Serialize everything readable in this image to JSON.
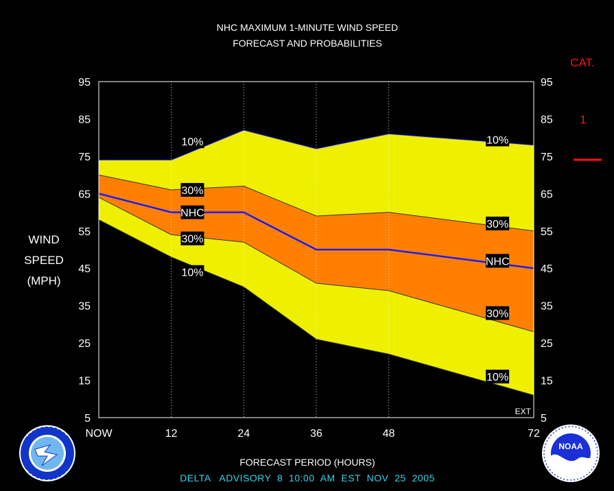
{
  "chart_data": {
    "type": "area",
    "title_line1": "NHC MAXIMUM 1-MINUTE WIND SPEED",
    "title_line2": "FORECAST AND PROBABILITIES",
    "ylabel_lines": [
      "WIND",
      "SPEED",
      "(MPH)"
    ],
    "xlabel": "FORECAST PERIOD (HOURS)",
    "ylim": [
      5,
      95
    ],
    "xlim": [
      0,
      72
    ],
    "yticks": [
      5,
      15,
      25,
      35,
      45,
      55,
      65,
      75,
      85,
      95
    ],
    "xticks": [
      {
        "x": 0,
        "label": "NOW"
      },
      {
        "x": 12,
        "label": "12"
      },
      {
        "x": 24,
        "label": "24"
      },
      {
        "x": 36,
        "label": "36"
      },
      {
        "x": 48,
        "label": "48"
      },
      {
        "x": 72,
        "label": "72"
      }
    ],
    "x": [
      0,
      12,
      24,
      36,
      48,
      72
    ],
    "series": [
      {
        "key": "upper10",
        "values": [
          74,
          74,
          82,
          77,
          81,
          78
        ]
      },
      {
        "key": "upper30",
        "values": [
          70,
          66,
          67,
          59,
          60,
          55
        ]
      },
      {
        "key": "nhc",
        "values": [
          65,
          60,
          60,
          50,
          50,
          45
        ]
      },
      {
        "key": "lower30",
        "values": [
          64,
          54,
          52,
          41,
          39,
          28
        ]
      },
      {
        "key": "lower10",
        "values": [
          58,
          48,
          40,
          26,
          22,
          11
        ]
      }
    ],
    "labels": [
      {
        "text": "10%",
        "x": 15.5,
        "y": 79
      },
      {
        "text": "30%",
        "x": 15.5,
        "y": 66
      },
      {
        "text": "NHC",
        "x": 15.5,
        "y": 60
      },
      {
        "text": "30%",
        "x": 15.5,
        "y": 53
      },
      {
        "text": "10%",
        "x": 15.5,
        "y": 44
      },
      {
        "text": "10%",
        "x": 66,
        "y": 79.5
      },
      {
        "text": "30%",
        "x": 66,
        "y": 57
      },
      {
        "text": "NHC",
        "x": 66,
        "y": 47
      },
      {
        "text": "30%",
        "x": 66,
        "y": 33
      },
      {
        "text": "10%",
        "x": 66,
        "y": 16
      }
    ],
    "ext_label": "EXT",
    "category": {
      "title": "CAT.",
      "value": "1"
    },
    "colors": {
      "outer_band": "#eef000",
      "inner_band": "#ff8000",
      "nhc_line": "#1a1aff",
      "background": "#000000",
      "advisory_text": "#33d6ee",
      "category": "#ff1010"
    }
  },
  "footer": {
    "advisory": "DELTA   ADVISORY  8  10:00  AM  EST  NOV  25  2005"
  },
  "logos": {
    "nws_icon": "national-weather-service-logo",
    "noaa_icon": "noaa-logo",
    "noaa_text": "NOAA"
  }
}
